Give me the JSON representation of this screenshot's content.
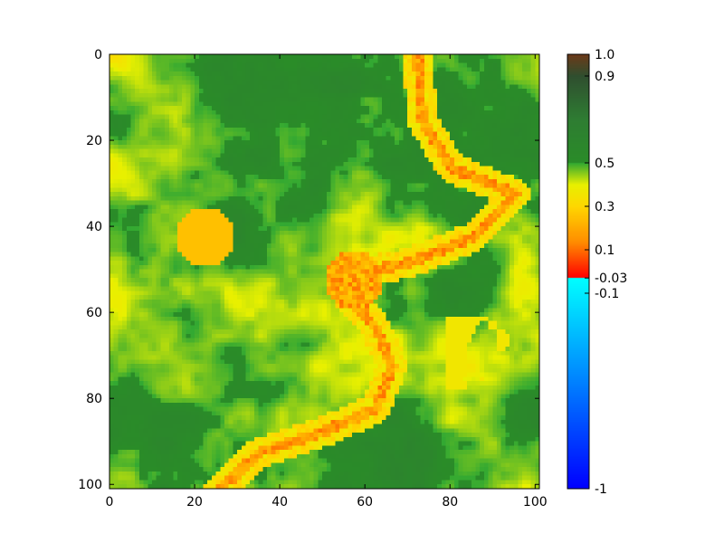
{
  "chart_data": {
    "type": "heatmap",
    "title": "",
    "xlabel": "",
    "ylabel": "",
    "grid": false,
    "rows": 101,
    "cols": 101,
    "x_ticks": [
      "0",
      "20",
      "40",
      "60",
      "80",
      "100"
    ],
    "x_tick_values": [
      0,
      20,
      40,
      60,
      80,
      100
    ],
    "y_ticks": [
      "0",
      "20",
      "40",
      "60",
      "80",
      "100"
    ],
    "y_tick_values": [
      0,
      20,
      40,
      60,
      80,
      100
    ],
    "xlim": [
      0,
      101
    ],
    "ylim": [
      101,
      0
    ],
    "value_range": [
      -1,
      1
    ],
    "colorbar": {
      "placement": "right",
      "range": [
        -1,
        1
      ],
      "ticks": [
        "1.0",
        "0.9",
        "0.5",
        "0.3",
        "0.1",
        "-0.03",
        "-0.1",
        "-1"
      ],
      "tick_values": [
        1.0,
        0.9,
        0.5,
        0.3,
        0.1,
        -0.03,
        -0.1,
        -1
      ],
      "segments": [
        {
          "from": -1,
          "to": -0.03,
          "colors": [
            "#0000ff",
            "#0080ff",
            "#00ffff"
          ]
        },
        {
          "from": -0.03,
          "to": 0.3,
          "colors": [
            "#ff0000",
            "#ff8c00",
            "#ffd700"
          ]
        },
        {
          "from": 0.3,
          "to": 0.5,
          "colors": [
            "#ffd700",
            "#e8f000",
            "#32a832"
          ]
        },
        {
          "from": 0.5,
          "to": 0.9,
          "colors": [
            "#2a8c28",
            "#2e7d32",
            "#2f4f2f"
          ]
        },
        {
          "from": 0.9,
          "to": 1.0,
          "colors": [
            "#2f4f2f",
            "#6b3a1a"
          ]
        }
      ]
    }
  }
}
